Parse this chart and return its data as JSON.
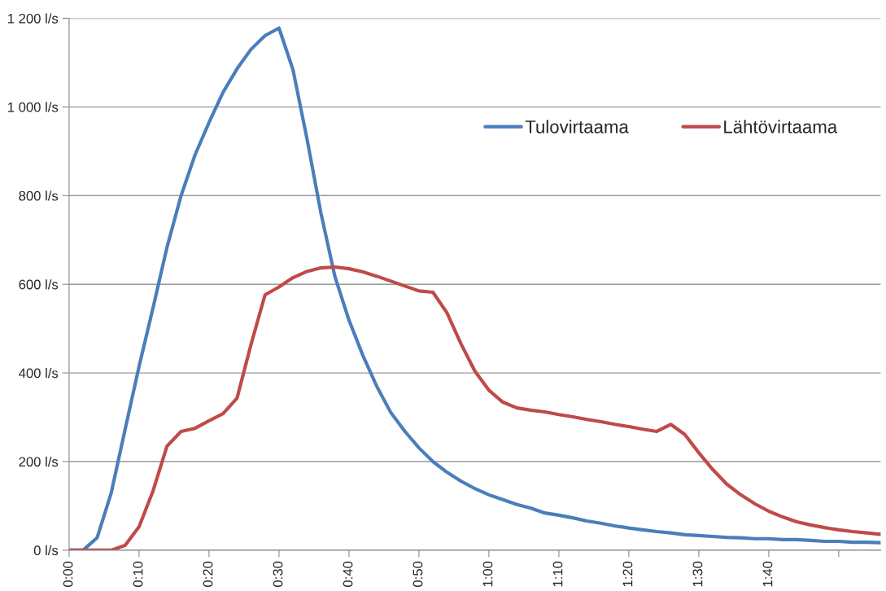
{
  "chart_data": {
    "type": "line",
    "x": [
      0,
      0.0333,
      0.0667,
      0.1,
      0.1333,
      0.1667,
      0.2,
      0.2333,
      0.2667,
      0.3,
      0.3333,
      0.3667,
      0.4,
      0.4333,
      0.4667,
      0.5,
      0.5333,
      0.5667,
      0.6,
      0.6333,
      0.6667,
      0.7,
      0.7333,
      0.7667,
      0.8,
      0.8333,
      0.8667,
      0.9,
      0.9333,
      0.9667,
      1,
      1.0333,
      1.0667,
      1.1,
      1.1333,
      1.1667,
      1.2,
      1.2333,
      1.2667,
      1.3,
      1.3333,
      1.3667,
      1.4,
      1.4333,
      1.4667,
      1.5,
      1.5333,
      1.5667,
      1.6,
      1.6333,
      1.6667,
      1.7,
      1.7333,
      1.7667,
      1.8,
      1.8333,
      1.8667,
      1.9,
      1.9333
    ],
    "series": [
      {
        "name": "Tulovirtaama",
        "color": "#4a7ebb",
        "values": [
          0,
          0,
          28,
          128,
          272,
          415,
          547,
          684,
          800,
          892,
          965,
          1033,
          1086,
          1130,
          1161,
          1178,
          1084,
          928,
          760,
          617,
          519,
          439,
          369,
          310,
          268,
          231,
          200,
          176,
          156,
          139,
          125,
          114,
          103,
          95,
          84,
          79,
          73,
          66,
          61,
          55,
          50,
          46,
          42,
          39,
          35,
          33,
          31,
          29,
          28,
          26,
          26,
          24,
          24,
          22,
          20,
          20,
          18,
          18,
          17
        ]
      },
      {
        "name": "Lähtövirtaama",
        "color": "#be4b48",
        "values": [
          0,
          0,
          0,
          0,
          11,
          53,
          134,
          235,
          268,
          275,
          292,
          308,
          343,
          464,
          576,
          594,
          615,
          629,
          637,
          639,
          635,
          628,
          618,
          607,
          596,
          585,
          582,
          536,
          466,
          404,
          361,
          334,
          321,
          316,
          312,
          306,
          301,
          295,
          290,
          284,
          279,
          273,
          268,
          284,
          261,
          220,
          182,
          149,
          125,
          105,
          88,
          75,
          64,
          57,
          51,
          46,
          42,
          39,
          36
        ]
      }
    ],
    "xlim": [
      0,
      1.9333
    ],
    "xticks": [
      {
        "value": 0,
        "label": "0:00"
      },
      {
        "value": 0.1667,
        "label": "0:10"
      },
      {
        "value": 0.3333,
        "label": "0:20"
      },
      {
        "value": 0.5,
        "label": "0:30"
      },
      {
        "value": 0.6667,
        "label": "0:40"
      },
      {
        "value": 0.8333,
        "label": "0:50"
      },
      {
        "value": 1,
        "label": "1:00"
      },
      {
        "value": 1.1667,
        "label": "1:10"
      },
      {
        "value": 1.3333,
        "label": "1:20"
      },
      {
        "value": 1.5,
        "label": "1:30"
      },
      {
        "value": 1.6667,
        "label": "1:40"
      },
      {
        "value": 1.8333,
        "label": null
      }
    ],
    "ylim": [
      0,
      1200
    ],
    "yticks": [
      {
        "value": 0,
        "label": "0 l/s"
      },
      {
        "value": 200,
        "label": "200 l/s"
      },
      {
        "value": 400,
        "label": "400 l/s"
      },
      {
        "value": 600,
        "label": "600 l/s"
      },
      {
        "value": 800,
        "label": "800 l/s"
      },
      {
        "value": 1000,
        "label": "1 000 l/s"
      },
      {
        "value": 1200,
        "label": "1 200 l/s"
      }
    ],
    "grid": "y",
    "legend": "top right",
    "marker": "none",
    "line_style": "solid"
  }
}
